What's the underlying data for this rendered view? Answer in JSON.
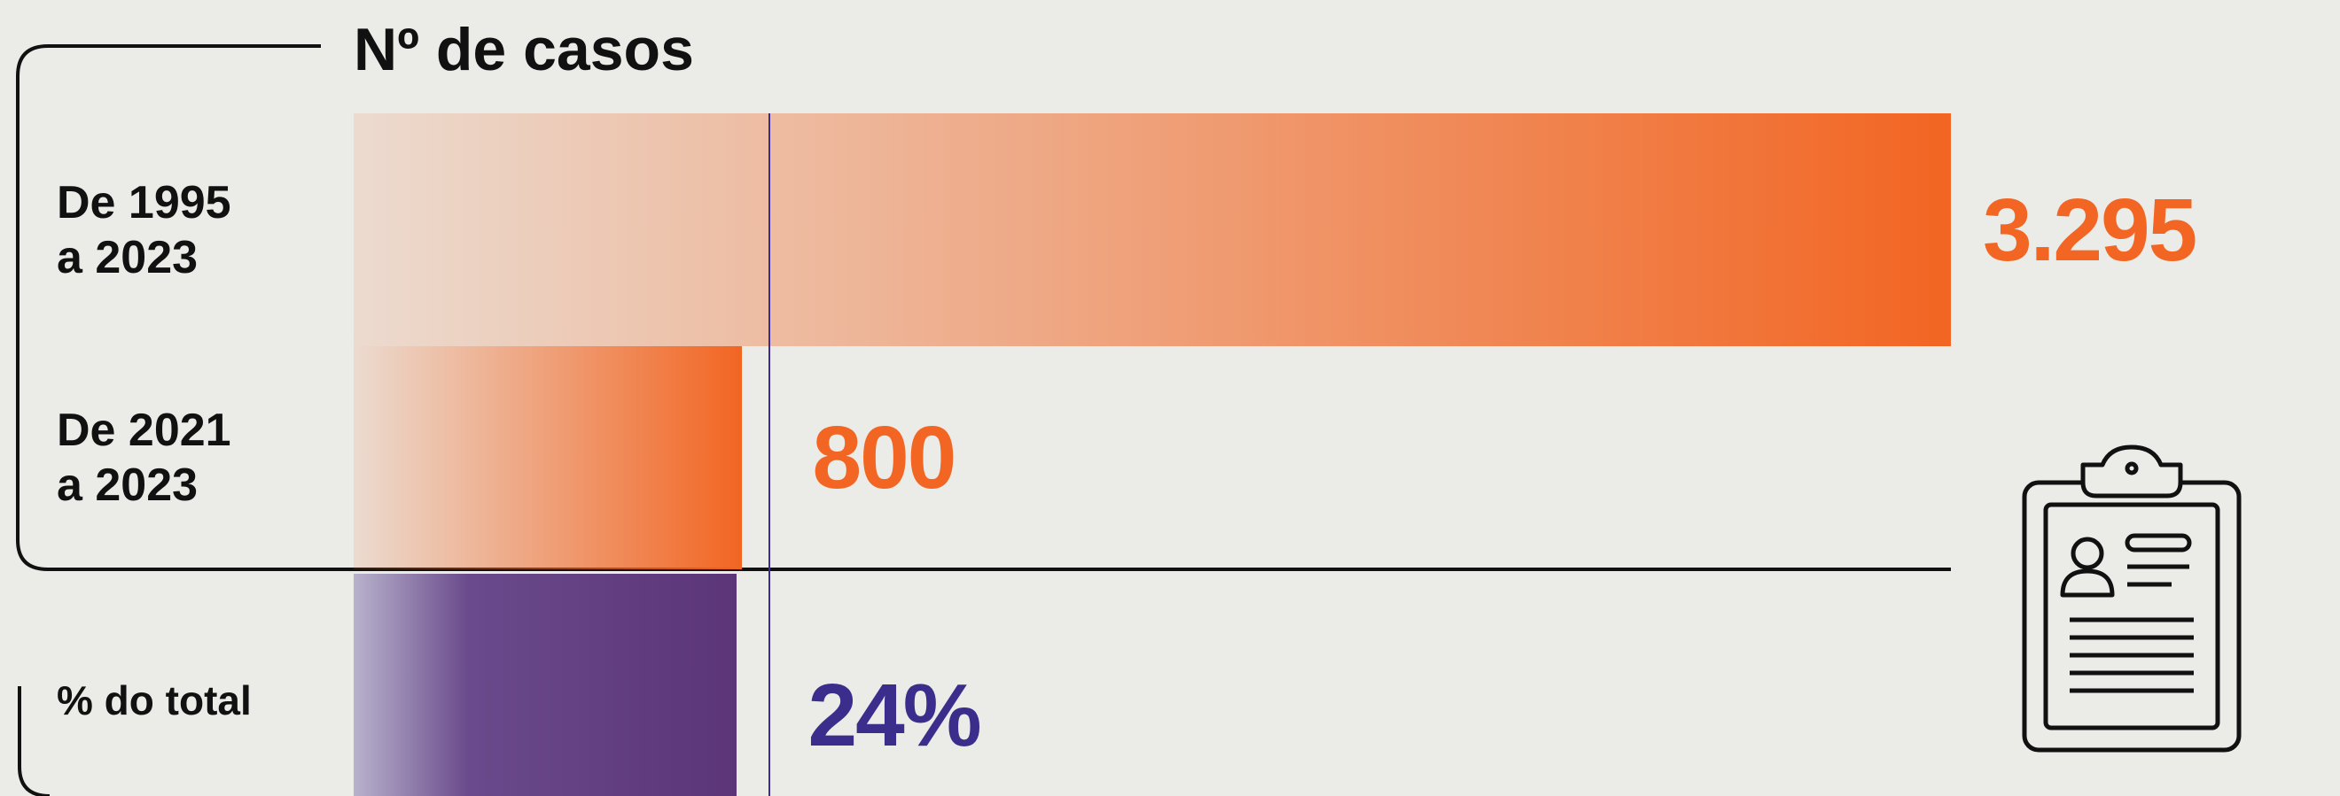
{
  "chart_data": {
    "type": "bar",
    "title": "Nº de casos",
    "categories": [
      "De 1995\na 2023",
      "De 2021\na 2023"
    ],
    "values": [
      3295,
      800
    ],
    "value_labels": [
      "3.295",
      "800"
    ],
    "color": "#f26522",
    "share": {
      "label": "% do total",
      "value": 24,
      "value_label": "24%",
      "color": "#3b2d8c"
    }
  }
}
